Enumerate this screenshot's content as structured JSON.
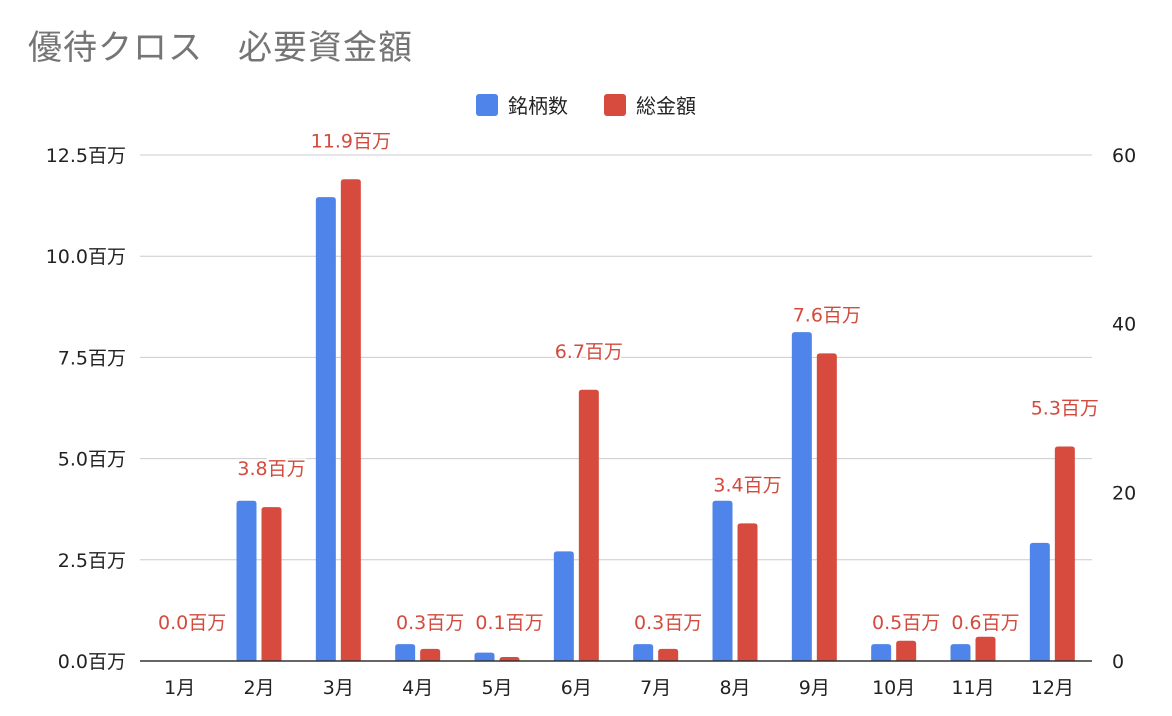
{
  "colors": {
    "series1": "#4f84ea",
    "series2": "#d64b3d",
    "grid": "#cccccc",
    "axis": "#333333",
    "label": "#d24b3e"
  },
  "chart_data": {
    "type": "bar",
    "title": "優待クロス　必要資金額",
    "xlabel": "",
    "ylabel": "",
    "legend_position": "top",
    "grid": true,
    "categories": [
      "1月",
      "2月",
      "3月",
      "4月",
      "5月",
      "6月",
      "7月",
      "8月",
      "9月",
      "10月",
      "11月",
      "12月"
    ],
    "series": [
      {
        "name": "銘柄数",
        "axis": "right",
        "values": [
          0,
          19,
          55,
          2,
          1,
          13,
          2,
          19,
          39,
          2,
          2,
          14
        ]
      },
      {
        "name": "総金額",
        "axis": "left",
        "values": [
          0.0,
          3.8,
          11.9,
          0.3,
          0.1,
          6.7,
          0.3,
          3.4,
          7.6,
          0.5,
          0.6,
          5.3
        ]
      }
    ],
    "data_labels": [
      "0.0百万",
      "3.8百万",
      "11.9百万",
      "0.3百万",
      "0.1百万",
      "6.7百万",
      "0.3百万",
      "3.4百万",
      "7.6百万",
      "0.5百万",
      "0.6百万",
      "5.3百万"
    ],
    "left_axis": {
      "ylim": [
        0,
        12.5
      ],
      "ticks": [
        "0.0百万",
        "2.5百万",
        "5.0百万",
        "7.5百万",
        "10.0百万",
        "12.5百万"
      ]
    },
    "right_axis": {
      "ylim": [
        0,
        60
      ],
      "ticks": [
        "0",
        "20",
        "40",
        "60"
      ]
    }
  }
}
